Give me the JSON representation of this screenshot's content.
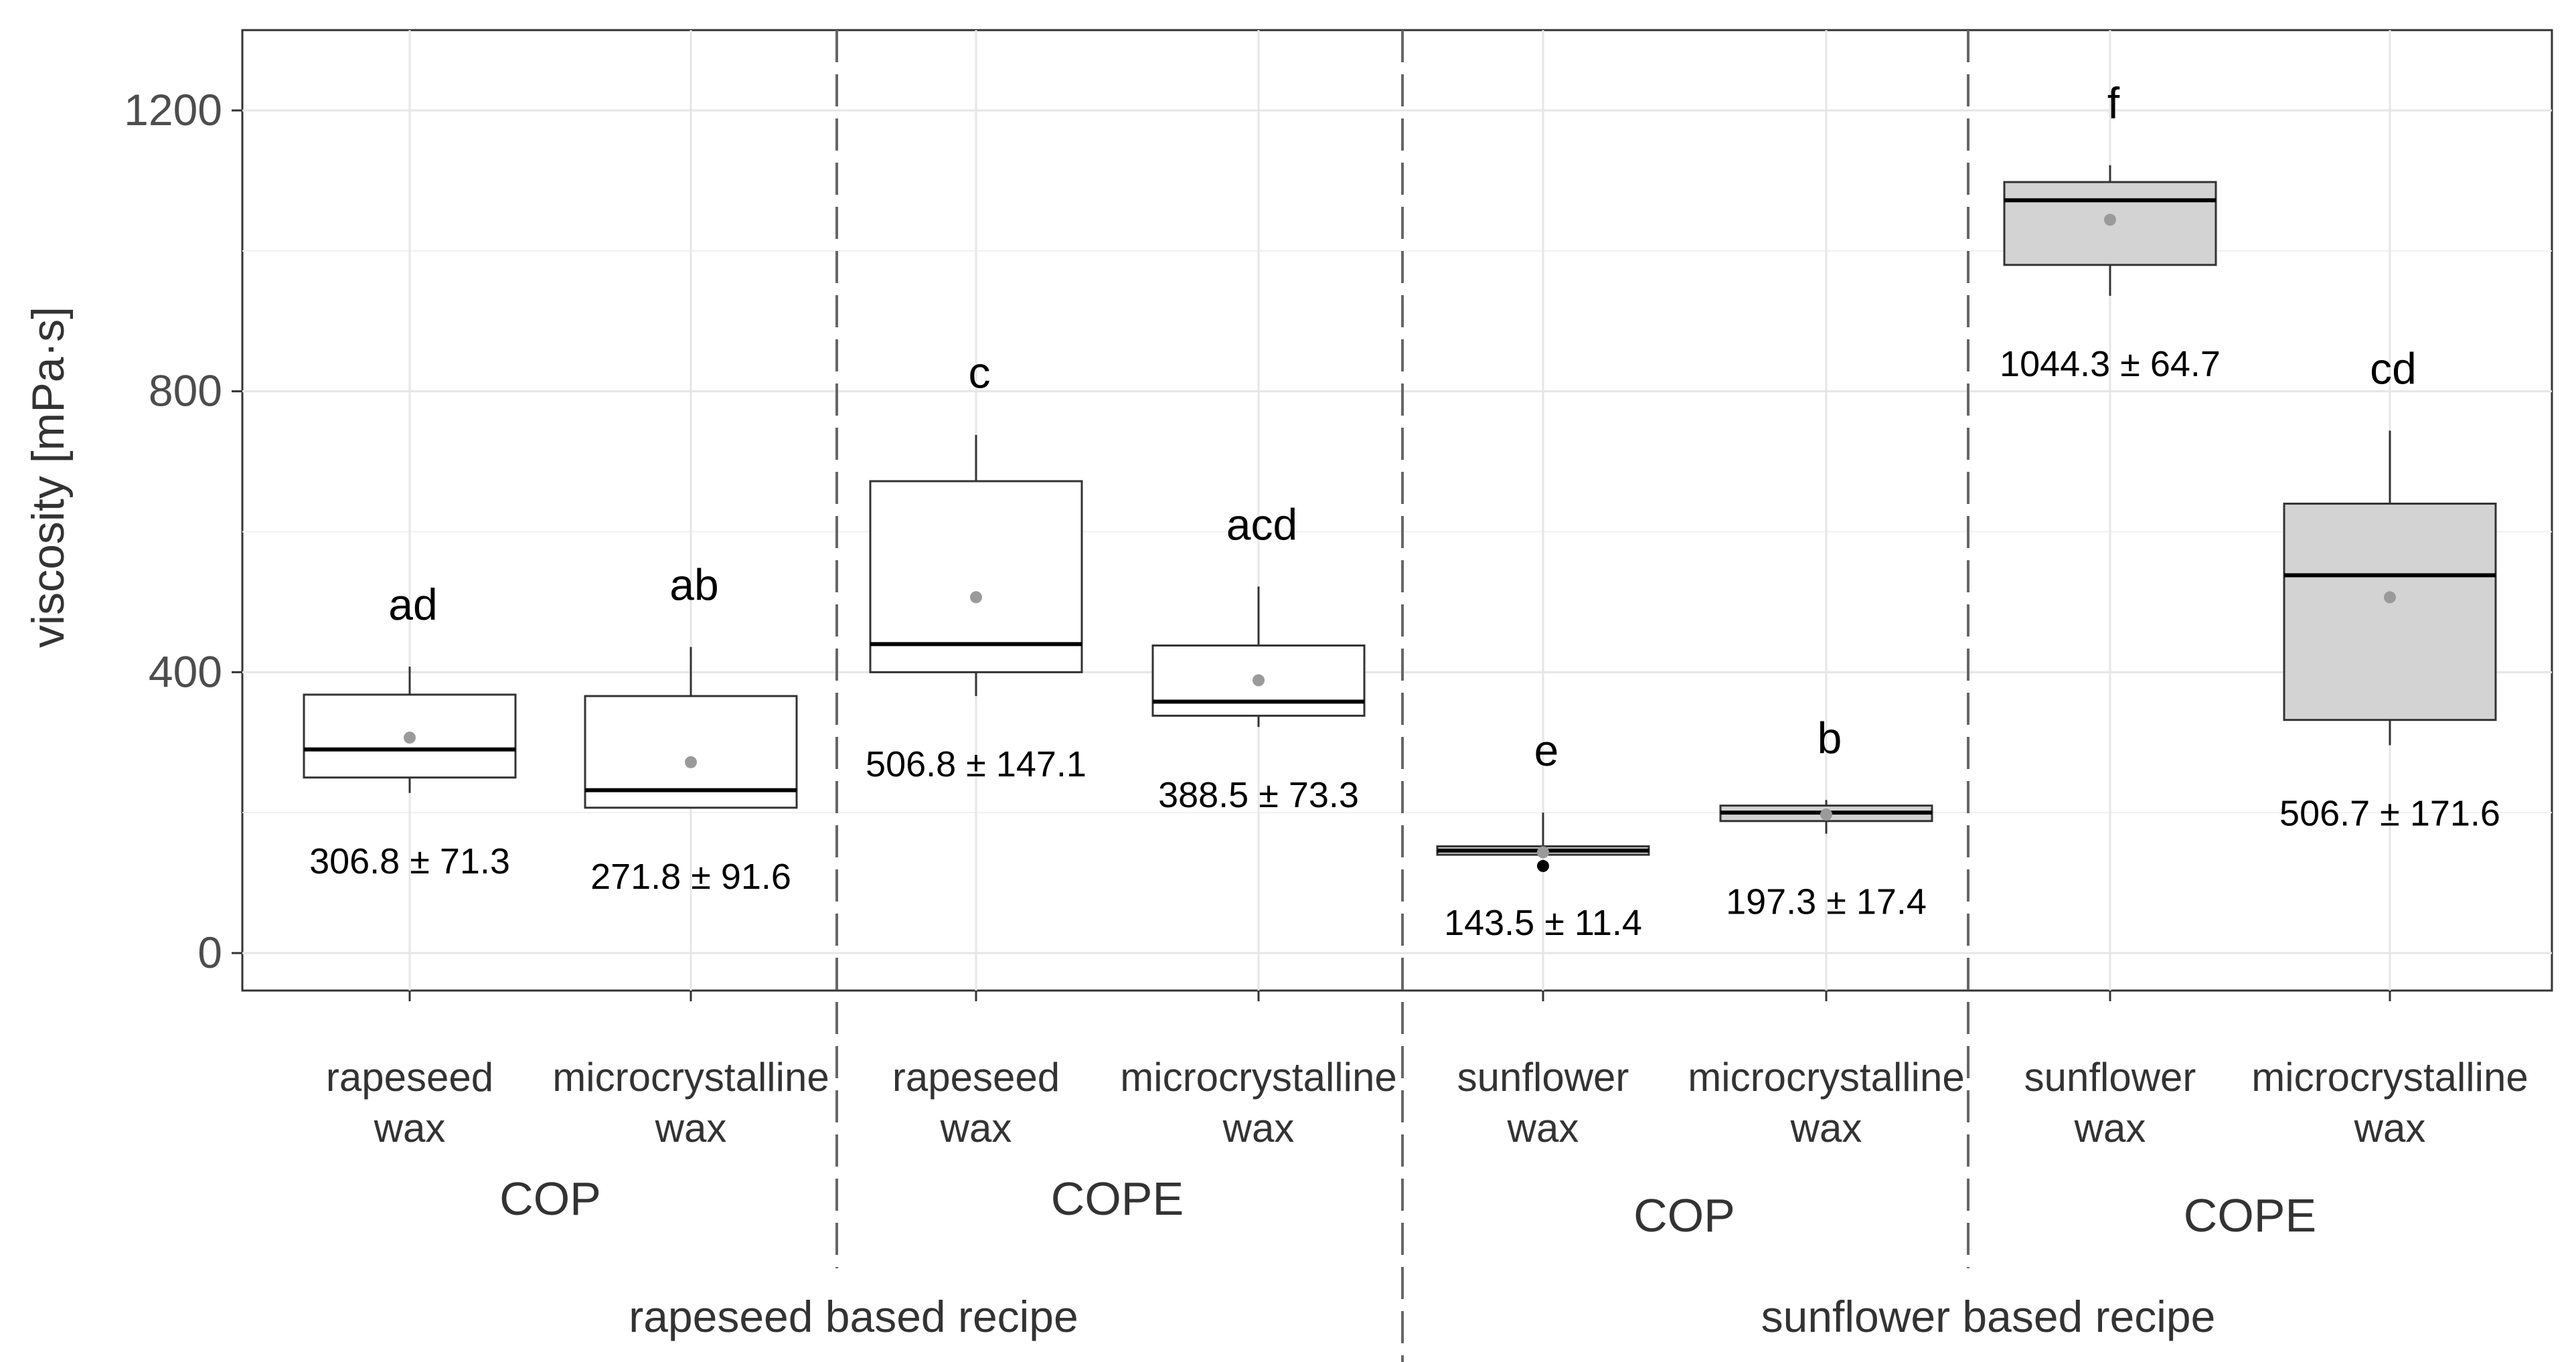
{
  "chart_data": {
    "type": "box",
    "title": "",
    "xlabel": "",
    "ylabel": "viscosity [mPa·s]",
    "ylim": [
      -60,
      1310
    ],
    "yticks": [
      0,
      400,
      800,
      1200
    ],
    "ytick_labels": [
      "0",
      "400",
      "800",
      "1200"
    ],
    "grid": true,
    "legend": "none",
    "categories": [
      {
        "line1": "rapeseed",
        "line2": "wax",
        "group": "COP",
        "recipe": "rapeseed based recipe",
        "min": 228,
        "q1": 250,
        "median": 290,
        "q3": 368,
        "max": 408,
        "mean": 306.8,
        "fill": "#ffffff",
        "letter": "ad",
        "stat": "306.8 ± 71.3",
        "outliers": []
      },
      {
        "line1": "microcrystalline",
        "line2": "wax",
        "group": "COP",
        "recipe": "rapeseed based recipe",
        "min": 206,
        "q1": 207,
        "median": 232,
        "q3": 366,
        "max": 436,
        "mean": 271.8,
        "fill": "#ffffff",
        "letter": "ab",
        "stat": "271.8 ± 91.6",
        "outliers": []
      },
      {
        "line1": "rapeseed",
        "line2": "wax",
        "group": "COPE",
        "recipe": "rapeseed based recipe",
        "min": 366,
        "q1": 400,
        "median": 440,
        "q3": 672,
        "max": 738,
        "mean": 506.8,
        "fill": "#ffffff",
        "letter": "c",
        "stat": "506.8 ± 147.1",
        "outliers": []
      },
      {
        "line1": "microcrystalline",
        "line2": "wax",
        "group": "COPE",
        "recipe": "rapeseed based recipe",
        "min": 322,
        "q1": 338,
        "median": 358,
        "q3": 438,
        "max": 522,
        "mean": 388.5,
        "fill": "#ffffff",
        "letter": "acd",
        "stat": "388.5 ± 73.3",
        "outliers": []
      },
      {
        "line1": "sunflower",
        "line2": "wax",
        "group": "COP",
        "recipe": "sunflower based recipe",
        "min": 140,
        "q1": 140,
        "median": 146,
        "q3": 152,
        "max": 200,
        "mean": 143.5,
        "fill": "#d3d3d3",
        "letter": "e",
        "stat": "143.5 ± 11.4",
        "outliers": [
          124
        ]
      },
      {
        "line1": "microcrystalline",
        "line2": "wax",
        "group": "COP",
        "recipe": "sunflower based recipe",
        "min": 170,
        "q1": 188,
        "median": 200,
        "q3": 210,
        "max": 218,
        "mean": 197.3,
        "fill": "#d3d3d3",
        "letter": "b",
        "stat": "197.3 ± 17.4",
        "outliers": []
      },
      {
        "line1": "sunflower",
        "line2": "wax",
        "group": "COPE",
        "recipe": "sunflower based recipe",
        "min": 936,
        "q1": 980,
        "median": 1072,
        "q3": 1098,
        "max": 1122,
        "mean": 1044.3,
        "fill": "#d3d3d3",
        "letter": "f",
        "stat": "1044.3 ± 64.7",
        "outliers": []
      },
      {
        "line1": "microcrystalline",
        "line2": "wax",
        "group": "COPE",
        "recipe": "sunflower based recipe",
        "min": 296,
        "q1": 332,
        "median": 538,
        "q3": 640,
        "max": 744,
        "mean": 506.7,
        "fill": "#d3d3d3",
        "letter": "cd",
        "stat": "506.7 ± 171.6",
        "outliers": []
      }
    ],
    "groups": [
      "COP",
      "COPE",
      "COP",
      "COPE"
    ],
    "recipes": [
      "rapeseed based recipe",
      "sunflower based recipe"
    ]
  }
}
